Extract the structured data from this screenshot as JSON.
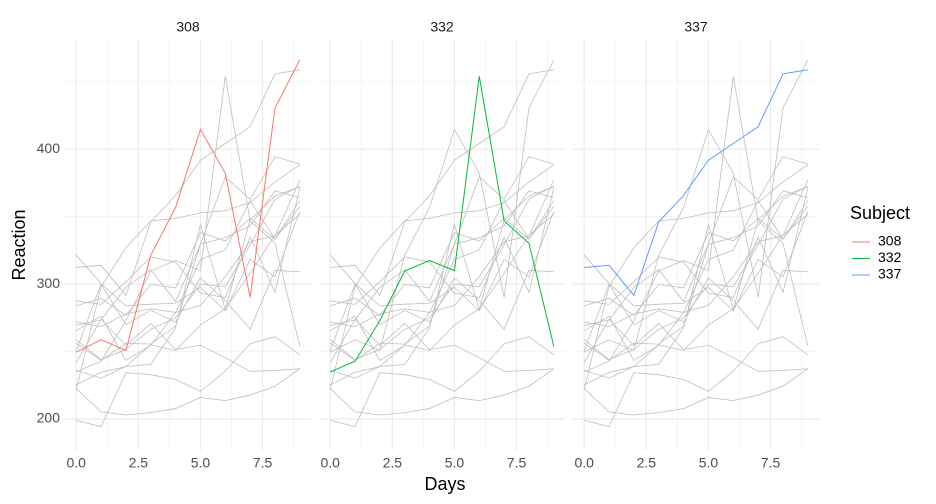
{
  "chart_data": {
    "type": "line",
    "x_label": "Days",
    "y_label": "Reaction",
    "x": [
      0,
      1,
      2,
      3,
      4,
      5,
      6,
      7,
      8,
      9
    ],
    "xlim": [
      -0.45,
      9.45
    ],
    "xticks": [
      {
        "value": 0,
        "label": "0.0"
      },
      2.5,
      {
        "value": 5,
        "label": "5.0"
      },
      7.5
    ],
    "xminor": [
      1.25,
      3.75,
      6.25,
      8.75
    ],
    "ylim": [
      177,
      481
    ],
    "yticks": [
      200,
      300,
      400
    ],
    "yminor": [
      250,
      350,
      450
    ],
    "grid": true,
    "background_color": "#bebebe",
    "legend_title": "Subject",
    "legend_position": "right",
    "facets": [
      {
        "title": "308",
        "color": "#f8766d",
        "values": [
          249.56,
          258.7,
          250.8,
          321.44,
          356.85,
          414.69,
          382.2,
          290.15,
          430.59,
          466.35
        ]
      },
      {
        "title": "332",
        "color": "#00ba38",
        "values": [
          234.86,
          242.81,
          272.96,
          309.77,
          317.46,
          309.99,
          454.16,
          346.83,
          330.3,
          253.86
        ]
      },
      {
        "title": "337",
        "color": "#619cff",
        "values": [
          312.36,
          313.94,
          291.61,
          346.12,
          365.73,
          391.84,
          404.26,
          416.69,
          455.86,
          458.92
        ]
      }
    ],
    "series": [
      {
        "values": [
          222.73,
          205.27,
          202.98,
          204.71,
          207.72,
          215.96,
          213.63,
          217.73,
          224.3,
          237.31
        ]
      },
      {
        "values": [
          199.05,
          194.33,
          234.32,
          232.84,
          229.31,
          220.46,
          235.42,
          255.75,
          261.01,
          247.52
        ]
      },
      {
        "values": [
          321.54,
          300.4,
          283.86,
          285.13,
          285.8,
          297.59,
          280.24,
          318.26,
          305.35,
          354.05
        ]
      },
      {
        "values": [
          287.61,
          285.0,
          301.82,
          320.12,
          316.28,
          293.32,
          290.08,
          334.82,
          293.75,
          371.58
        ]
      },
      {
        "values": [
          283.84,
          289.55,
          276.77,
          299.8,
          297.17,
          338.17,
          332.02,
          348.84,
          333.36,
          362.04
        ]
      },
      {
        "values": [
          265.48,
          276.2,
          243.36,
          254.67,
          279.02,
          284.19,
          305.52,
          331.52,
          335.75,
          377.3
        ]
      },
      {
        "values": [
          241.61,
          273.95,
          254.49,
          270.84,
          251.45,
          254.64,
          245.45,
          235.31,
          235.98,
          237.26
        ]
      },
      {
        "values": [
          236.1,
          230.32,
          238.93,
          254.92,
          250.71,
          269.77,
          281.56,
          308.1,
          336.28,
          351.65
        ]
      },
      {
        "values": [
          256.29,
          243.45,
          256.2,
          255.53,
          268.92,
          329.73,
          379.44,
          362.91,
          394.49,
          389.05
        ]
      },
      {
        "values": [
          250.53,
          300.06,
          269.89,
          280.58,
          271.83,
          304.63,
          287.75,
          266.56,
          310.14,
          309.18
        ]
      },
      {
        "values": [
          221.68,
          298.19,
          326.88,
          346.86,
          348.74,
          352.83,
          354.43,
          360.43,
          375.64,
          388.54
        ]
      },
      {
        "values": [
          271.92,
          268.44,
          277.89,
          281.72,
          279.04,
          318.26,
          325.33,
          361.76,
          333.34,
          357.66
        ]
      },
      {
        "values": [
          225.26,
          234.52,
          238.9,
          240.47,
          267.54,
          344.19,
          281.15,
          347.59,
          365.16,
          372.24
        ]
      },
      {
        "values": [
          269.41,
          273.47,
          297.6,
          310.63,
          287.17,
          329.61,
          334.48,
          343.22,
          369.14,
          364.12
        ]
      },
      {
        "values": [
          259.0,
          243.9,
          251.6,
          266.4,
          275.0,
          300.0,
          298.1,
          329.0,
          363.0,
          372.6
        ]
      }
    ]
  }
}
